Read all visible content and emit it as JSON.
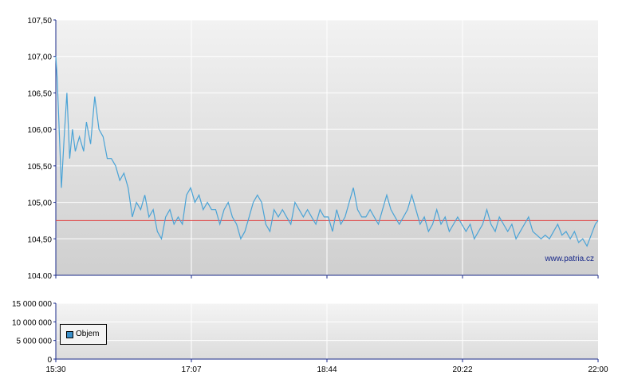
{
  "watermark": "www.patria.cz",
  "colors": {
    "price_line": "#4aa3d6",
    "reference_line": "#e04444",
    "legend_swatch": "#3a8fc9",
    "axis": "#1a2a8a"
  },
  "legend": {
    "label": "Objem"
  },
  "chart_data": [
    {
      "type": "line",
      "ylim": [
        104.0,
        107.5
      ],
      "y_ticks": [
        "104.00",
        "104,50",
        "105,00",
        "105,50",
        "106,00",
        "106,50",
        "107,00",
        "107,50"
      ],
      "x_range_minutes": [
        "15:30",
        "22:00"
      ],
      "reference_line": 104.75,
      "grid": true,
      "series": [
        {
          "x": [
            "15:30",
            "15:31",
            "15:32",
            "15:34",
            "15:36",
            "15:38",
            "15:40",
            "15:42",
            "15:44",
            "15:47",
            "15:50",
            "15:52",
            "15:55",
            "15:58",
            "16:01",
            "16:04",
            "16:07",
            "16:10",
            "16:13",
            "16:16",
            "16:19",
            "16:22",
            "16:25",
            "16:28",
            "16:31",
            "16:34",
            "16:37",
            "16:40",
            "16:43",
            "16:46",
            "16:49",
            "16:52",
            "16:55",
            "16:58",
            "17:01",
            "17:04",
            "17:07",
            "17:10",
            "17:13",
            "17:16",
            "17:19",
            "17:22",
            "17:25",
            "17:28",
            "17:31",
            "17:34",
            "17:37",
            "17:40",
            "17:43",
            "17:46",
            "17:49",
            "17:52",
            "17:55",
            "17:58",
            "18:01",
            "18:04",
            "18:07",
            "18:10",
            "18:13",
            "18:16",
            "18:19",
            "18:22",
            "18:25",
            "18:28",
            "18:31",
            "18:34",
            "18:37",
            "18:40",
            "18:43",
            "18:46",
            "18:49",
            "18:52",
            "18:55",
            "18:58",
            "19:01",
            "19:04",
            "19:07",
            "19:10",
            "19:13",
            "19:16",
            "19:19",
            "19:22",
            "19:25",
            "19:28",
            "19:31",
            "19:34",
            "19:37",
            "19:40",
            "19:43",
            "19:46",
            "19:49",
            "19:52",
            "19:55",
            "19:58",
            "20:01",
            "20:04",
            "20:07",
            "20:10",
            "20:13",
            "20:16",
            "20:19",
            "20:22",
            "20:25",
            "20:28",
            "20:31",
            "20:34",
            "20:37",
            "20:40",
            "20:43",
            "20:46",
            "20:49",
            "20:52",
            "20:55",
            "20:58",
            "21:01",
            "21:04",
            "21:07",
            "21:10",
            "21:13",
            "21:16",
            "21:19",
            "21:22",
            "21:25",
            "21:28",
            "21:31",
            "21:34",
            "21:37",
            "21:40",
            "21:43",
            "21:46",
            "21:49",
            "21:52",
            "21:55",
            "21:58",
            "22:00"
          ],
          "values": [
            107.0,
            106.7,
            106.2,
            105.2,
            105.9,
            106.5,
            105.6,
            106.0,
            105.7,
            105.9,
            105.7,
            106.1,
            105.8,
            106.45,
            106.0,
            105.9,
            105.6,
            105.6,
            105.5,
            105.3,
            105.4,
            105.2,
            104.8,
            105.0,
            104.9,
            105.1,
            104.8,
            104.9,
            104.6,
            104.5,
            104.8,
            104.9,
            104.7,
            104.8,
            104.7,
            105.1,
            105.2,
            105.0,
            105.1,
            104.9,
            105.0,
            104.9,
            104.9,
            104.7,
            104.9,
            105.0,
            104.8,
            104.7,
            104.5,
            104.6,
            104.8,
            105.0,
            105.1,
            105.0,
            104.7,
            104.6,
            104.9,
            104.8,
            104.9,
            104.8,
            104.7,
            105.0,
            104.9,
            104.8,
            104.9,
            104.8,
            104.7,
            104.9,
            104.8,
            104.8,
            104.6,
            104.9,
            104.7,
            104.8,
            105.0,
            105.2,
            104.9,
            104.8,
            104.8,
            104.9,
            104.8,
            104.7,
            104.9,
            105.1,
            104.9,
            104.8,
            104.7,
            104.8,
            104.9,
            105.1,
            104.9,
            104.7,
            104.8,
            104.6,
            104.7,
            104.9,
            104.7,
            104.8,
            104.6,
            104.7,
            104.8,
            104.7,
            104.6,
            104.7,
            104.5,
            104.6,
            104.7,
            104.9,
            104.7,
            104.6,
            104.8,
            104.7,
            104.6,
            104.7,
            104.5,
            104.6,
            104.7,
            104.8,
            104.6,
            104.55,
            104.5,
            104.55,
            104.5,
            104.6,
            104.7,
            104.55,
            104.6,
            104.5,
            104.6,
            104.45,
            104.5,
            104.4,
            104.55,
            104.7,
            104.75
          ]
        }
      ]
    },
    {
      "type": "bar",
      "ylim": [
        0,
        15000000
      ],
      "y_ticks": [
        "0",
        "5 000 000",
        "10 000 000",
        "15 000 000"
      ],
      "x_tick_labels": [
        "15:30",
        "17:07",
        "18:44",
        "20:22",
        "22:00"
      ],
      "grid": true,
      "series": [
        {
          "name": "Objem",
          "values": []
        }
      ]
    }
  ]
}
